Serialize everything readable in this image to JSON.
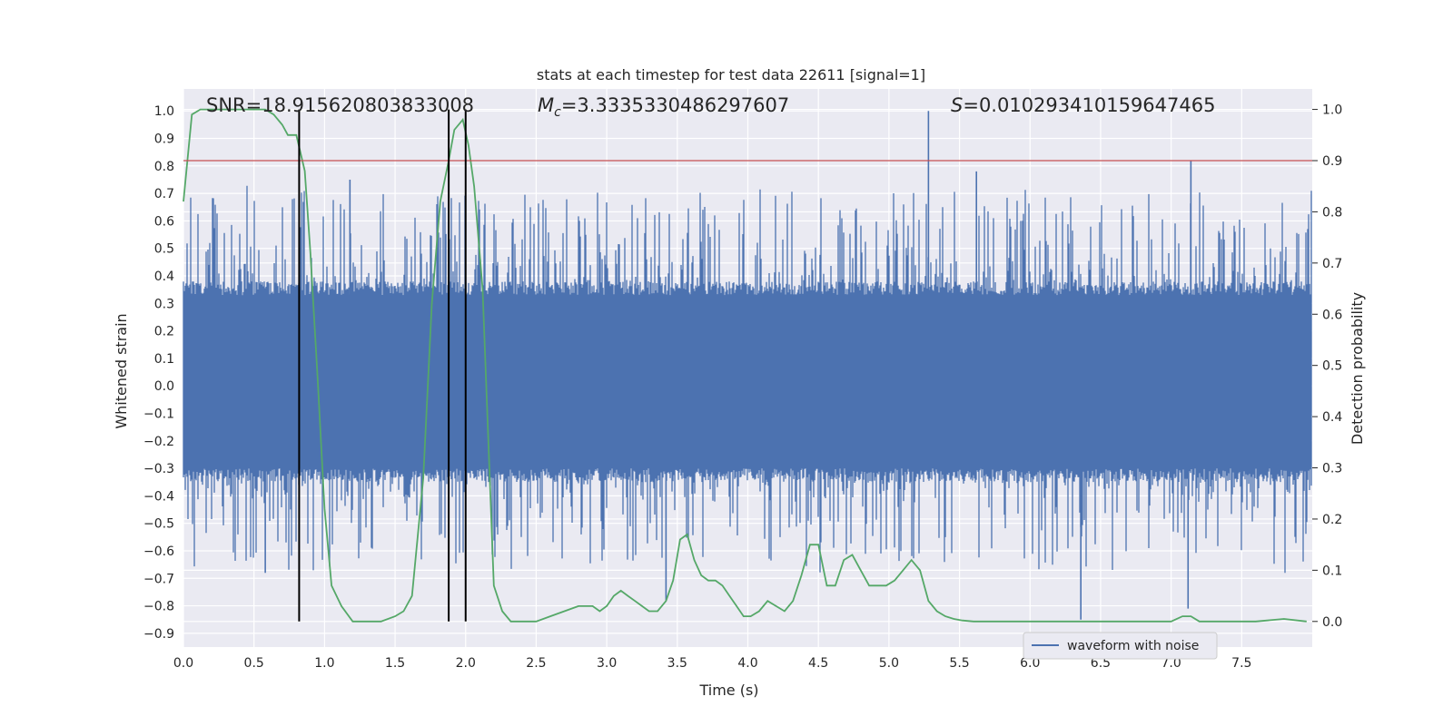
{
  "chart_data": {
    "type": "line",
    "title": "stats at each timestep for test data 22611 [signal=1]",
    "xlabel": "Time (s)",
    "ylabel": "Whitened strain",
    "y2label": "Detection probability",
    "xlim": [
      0.0,
      8.0
    ],
    "ylim": [
      -0.95,
      1.08
    ],
    "y2lim": [
      -0.05,
      1.04
    ],
    "xticks": [
      "0.0",
      "0.5",
      "1.0",
      "1.5",
      "2.0",
      "2.5",
      "3.0",
      "3.5",
      "4.0",
      "4.5",
      "5.0",
      "5.5",
      "6.0",
      "6.5",
      "7.0",
      "7.5"
    ],
    "yticks": [
      "1.0",
      "0.9",
      "0.8",
      "0.7",
      "0.6",
      "0.5",
      "0.4",
      "0.3",
      "0.2",
      "0.1",
      "0.0",
      "-0.1",
      "-0.2",
      "-0.3",
      "-0.4",
      "-0.5",
      "-0.6",
      "-0.7",
      "-0.8",
      "-0.9"
    ],
    "y2ticks": [
      "1.0",
      "0.9",
      "0.8",
      "0.7",
      "0.6",
      "0.5",
      "0.4",
      "0.3",
      "0.2",
      "0.1",
      "0.0"
    ],
    "grid": true,
    "legend": {
      "placement": "lower-right",
      "entries": [
        "waveform with noise"
      ]
    },
    "annotations": {
      "snr": "SNR=18.915620803833008",
      "mc_symbol": "M",
      "mc_sub": "c",
      "mc_value": "=3.3335330486297607",
      "s_symbol": "S",
      "s_value": "=0.010293410159647465"
    },
    "threshold": {
      "value": 0.9,
      "axis": "y2",
      "color": "#c44e52"
    },
    "vlines": [
      0.82,
      1.88,
      2.0
    ],
    "colors": {
      "waveform": "#4c72b0",
      "probability": "#55a868",
      "vline": "#000000",
      "background": "#eaeaf2"
    },
    "waveform": {
      "name": "waveform with noise",
      "typical_range": [
        -0.3,
        0.33
      ],
      "notable_peaks": [
        {
          "t": 5.28,
          "y": 1.0
        },
        {
          "t": 7.14,
          "y": 0.82
        },
        {
          "t": 5.62,
          "y": 0.78
        },
        {
          "t": 1.18,
          "y": 0.75
        },
        {
          "t": 6.36,
          "y": -0.85
        },
        {
          "t": 7.12,
          "y": -0.81
        },
        {
          "t": 3.42,
          "y": -0.78
        },
        {
          "t": 0.58,
          "y": -0.68
        }
      ]
    },
    "probability": {
      "t": [
        0.0,
        0.06,
        0.12,
        0.2,
        0.3,
        0.4,
        0.5,
        0.58,
        0.64,
        0.7,
        0.74,
        0.8,
        0.86,
        0.9,
        0.95,
        1.0,
        1.05,
        1.12,
        1.2,
        1.3,
        1.4,
        1.5,
        1.56,
        1.62,
        1.7,
        1.76,
        1.82,
        1.88,
        1.92,
        1.98,
        2.02,
        2.06,
        2.12,
        2.2,
        2.26,
        2.32,
        2.4,
        2.5,
        2.6,
        2.7,
        2.8,
        2.9,
        2.95,
        3.0,
        3.05,
        3.1,
        3.15,
        3.2,
        3.25,
        3.3,
        3.36,
        3.42,
        3.47,
        3.52,
        3.57,
        3.62,
        3.67,
        3.72,
        3.77,
        3.82,
        3.87,
        3.92,
        3.97,
        4.02,
        4.08,
        4.14,
        4.2,
        4.26,
        4.32,
        4.38,
        4.44,
        4.5,
        4.56,
        4.62,
        4.68,
        4.74,
        4.8,
        4.86,
        4.92,
        4.98,
        5.04,
        5.1,
        5.16,
        5.22,
        5.28,
        5.34,
        5.4,
        5.46,
        5.52,
        5.6,
        5.7,
        5.8,
        5.9,
        6.0,
        6.2,
        6.4,
        6.6,
        6.8,
        7.0,
        7.08,
        7.14,
        7.2,
        7.4,
        7.6,
        7.8,
        7.96
      ],
      "p": [
        0.82,
        0.99,
        1.0,
        1.0,
        1.0,
        1.0,
        1.0,
        1.0,
        0.99,
        0.97,
        0.95,
        0.95,
        0.88,
        0.72,
        0.48,
        0.22,
        0.07,
        0.03,
        0.0,
        0.0,
        0.0,
        0.01,
        0.02,
        0.05,
        0.28,
        0.62,
        0.82,
        0.9,
        0.96,
        0.98,
        0.93,
        0.85,
        0.65,
        0.07,
        0.02,
        0.0,
        0.0,
        0.0,
        0.01,
        0.02,
        0.03,
        0.03,
        0.02,
        0.03,
        0.05,
        0.06,
        0.05,
        0.04,
        0.03,
        0.02,
        0.02,
        0.04,
        0.08,
        0.16,
        0.17,
        0.12,
        0.09,
        0.08,
        0.08,
        0.07,
        0.05,
        0.03,
        0.01,
        0.01,
        0.02,
        0.04,
        0.03,
        0.02,
        0.04,
        0.09,
        0.15,
        0.15,
        0.07,
        0.07,
        0.12,
        0.13,
        0.1,
        0.07,
        0.07,
        0.07,
        0.08,
        0.1,
        0.12,
        0.1,
        0.04,
        0.02,
        0.01,
        0.005,
        0.002,
        0.0,
        0.0,
        0.0,
        0.0,
        0.0,
        0.0,
        0.0,
        0.0,
        0.0,
        0.0,
        0.01,
        0.01,
        0.0,
        0.0,
        0.0,
        0.005,
        0.0
      ]
    }
  }
}
